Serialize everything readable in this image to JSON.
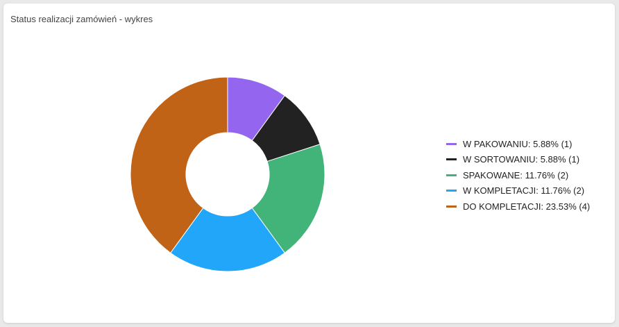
{
  "card": {
    "title": "Status realizacji zamówień - wykres"
  },
  "chart_data": {
    "type": "pie",
    "donut": true,
    "legend_position": "right",
    "slices": [
      {
        "label": "W PAKOWANIU: 5.88% (1)",
        "value": 1,
        "color": "#9466f0"
      },
      {
        "label": "W SORTOWANIU: 5.88% (1)",
        "value": 1,
        "color": "#222222"
      },
      {
        "label": "SPAKOWANE: 11.76% (2)",
        "value": 2,
        "color": "#42b47a"
      },
      {
        "label": "W KOMPLETACJI: 11.76% (2)",
        "value": 2,
        "color": "#22a6fa"
      },
      {
        "label": "DO KOMPLETACJI: 23.53% (4)",
        "value": 4,
        "color": "#c06316"
      }
    ]
  }
}
